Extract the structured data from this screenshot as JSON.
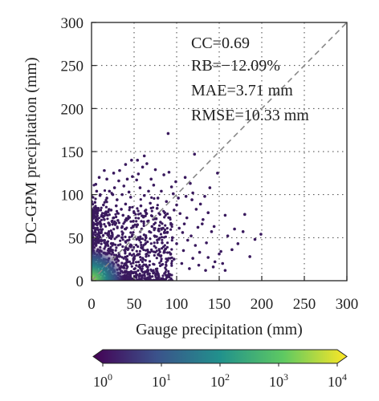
{
  "chart_data": {
    "type": "scatter",
    "xlabel": "Gauge precipitation (mm)",
    "ylabel": "DC-GPM precipitation (mm)",
    "xlim": [
      0,
      300
    ],
    "ylim": [
      0,
      300
    ],
    "x_ticks": [
      "0",
      "50",
      "100",
      "150",
      "200",
      "250",
      "300"
    ],
    "y_ticks": [
      "0",
      "50",
      "100",
      "150",
      "200",
      "250",
      "300"
    ],
    "grid": true,
    "grid_style": "dotted",
    "reference_line": {
      "style": "dashed",
      "from": [
        0,
        0
      ],
      "to": [
        300,
        300
      ]
    },
    "stats": [
      "CC=0.69",
      "RB=−12.09%",
      "MAE=3.71 mm",
      "RMSE=10.33 mm"
    ],
    "colorbar": {
      "orientation": "horizontal",
      "scale": "log",
      "range": [
        1,
        10000
      ],
      "ticks": [
        {
          "base": "10",
          "exp": "0"
        },
        {
          "base": "10",
          "exp": "1"
        },
        {
          "base": "10",
          "exp": "2"
        },
        {
          "base": "10",
          "exp": "3"
        },
        {
          "base": "10",
          "exp": "4"
        }
      ],
      "colormap": [
        "#440154",
        "#3b528b",
        "#21918c",
        "#5ec962",
        "#fde725"
      ]
    },
    "outlier_points": [
      [
        90,
        171
      ],
      [
        148,
        125
      ],
      [
        121,
        147
      ],
      [
        139,
        108
      ],
      [
        133,
        98
      ],
      [
        160,
        52
      ],
      [
        199,
        54
      ],
      [
        180,
        77
      ],
      [
        152,
        34
      ],
      [
        128,
        89
      ],
      [
        118,
        94
      ],
      [
        102,
        96
      ],
      [
        96,
        101
      ],
      [
        110,
        120
      ],
      [
        116,
        113
      ],
      [
        100,
        88
      ],
      [
        104,
        78
      ],
      [
        131,
        71
      ],
      [
        125,
        62
      ],
      [
        117,
        52
      ],
      [
        109,
        66
      ],
      [
        141,
        57
      ],
      [
        135,
        44
      ],
      [
        112,
        73
      ],
      [
        94,
        109
      ],
      [
        99,
        115
      ],
      [
        88,
        92
      ],
      [
        85,
        123
      ],
      [
        91,
        126
      ],
      [
        75,
        129
      ],
      [
        70,
        118
      ],
      [
        60,
        132
      ],
      [
        65,
        136
      ],
      [
        55,
        124
      ],
      [
        53,
        117
      ],
      [
        48,
        121
      ],
      [
        42,
        118
      ],
      [
        38,
        110
      ],
      [
        44,
        103
      ],
      [
        36,
        100
      ],
      [
        46,
        97
      ],
      [
        30,
        94
      ],
      [
        25,
        100
      ],
      [
        21,
        104
      ],
      [
        27,
        108
      ],
      [
        32,
        116
      ],
      [
        18,
        96
      ],
      [
        14,
        88
      ],
      [
        10,
        99
      ],
      [
        6,
        104
      ],
      [
        57,
        108
      ],
      [
        62,
        99
      ],
      [
        67,
        104
      ],
      [
        73,
        111
      ],
      [
        78,
        96
      ],
      [
        82,
        104
      ],
      [
        69,
        90
      ],
      [
        58,
        87
      ],
      [
        63,
        81
      ],
      [
        77,
        84
      ],
      [
        86,
        79
      ],
      [
        92,
        73
      ],
      [
        97,
        82
      ],
      [
        103,
        61
      ],
      [
        107,
        56
      ],
      [
        113,
        47
      ],
      [
        122,
        41
      ],
      [
        127,
        33
      ],
      [
        137,
        27
      ],
      [
        145,
        22
      ],
      [
        150,
        31
      ],
      [
        154,
        20
      ],
      [
        119,
        26
      ],
      [
        108,
        35
      ],
      [
        100,
        43
      ],
      [
        95,
        50
      ],
      [
        89,
        56
      ],
      [
        84,
        61
      ],
      [
        81,
        68
      ],
      [
        76,
        72
      ],
      [
        71,
        63
      ],
      [
        66,
        69
      ],
      [
        61,
        74
      ],
      [
        50,
        79
      ],
      [
        45,
        85
      ],
      [
        40,
        89
      ],
      [
        35,
        83
      ],
      [
        29,
        87
      ],
      [
        23,
        82
      ],
      [
        17,
        80
      ],
      [
        12,
        76
      ],
      [
        8,
        84
      ],
      [
        4,
        91
      ],
      [
        172,
        43
      ],
      [
        165,
        36
      ],
      [
        157,
        12
      ],
      [
        143,
        16
      ],
      [
        134,
        12
      ],
      [
        126,
        18
      ],
      [
        115,
        14
      ],
      [
        106,
        20
      ],
      [
        97,
        25
      ],
      [
        93,
        31
      ],
      [
        87,
        37
      ],
      [
        83,
        44
      ],
      [
        79,
        48
      ],
      [
        74,
        52
      ],
      [
        68,
        57
      ],
      [
        64,
        50
      ],
      [
        59,
        60
      ],
      [
        54,
        65
      ],
      [
        49,
        69
      ],
      [
        43,
        72
      ],
      [
        37,
        76
      ],
      [
        31,
        70
      ],
      [
        26,
        73
      ],
      [
        20,
        67
      ],
      [
        15,
        71
      ],
      [
        11,
        63
      ],
      [
        7,
        66
      ],
      [
        3,
        74
      ],
      [
        111,
        98
      ],
      [
        119,
        102
      ],
      [
        123,
        83
      ],
      [
        130,
        66
      ],
      [
        137,
        79
      ],
      [
        144,
        63
      ],
      [
        157,
        76
      ],
      [
        186,
        28
      ],
      [
        192,
        48
      ],
      [
        178,
        57
      ],
      [
        168,
        60
      ],
      [
        62,
        145
      ],
      [
        54,
        140
      ],
      [
        40,
        135
      ],
      [
        33,
        128
      ],
      [
        26,
        125
      ],
      [
        18,
        118
      ],
      [
        5,
        112
      ],
      [
        9,
        120
      ],
      [
        15,
        128
      ],
      [
        47,
        140
      ]
    ]
  }
}
